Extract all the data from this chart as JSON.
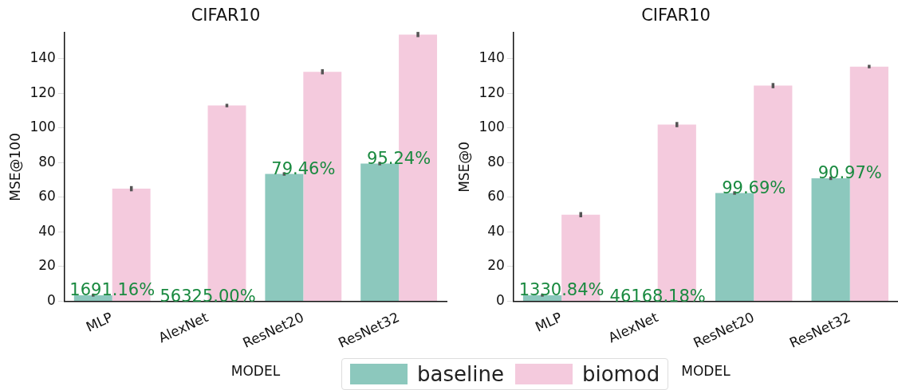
{
  "chart_data": [
    {
      "type": "bar",
      "title": "CIFAR10",
      "xlabel": "MODEL",
      "ylabel": "MSE@100",
      "categories": [
        "MLP",
        "AlexNet",
        "ResNet20",
        "ResNet32"
      ],
      "series": [
        {
          "name": "baseline",
          "color": "#8cc8bd",
          "values": [
            3.5,
            0.2,
            73.5,
            79.5
          ],
          "errors": [
            0.8,
            null,
            1,
            1
          ]
        },
        {
          "name": "biomod",
          "color": "#f4cadd",
          "values": [
            65,
            113,
            132.5,
            154
          ],
          "errors": [
            1.5,
            1,
            1.5,
            1.5
          ]
        }
      ],
      "ylim": [
        0,
        155
      ],
      "yticks": [
        0,
        20,
        40,
        60,
        80,
        100,
        120,
        140
      ],
      "grid": false,
      "legend": "bottom",
      "annotations": [
        {
          "text": "1691.16%",
          "x": "MLP",
          "y": 3.5
        },
        {
          "text": "56325.00%",
          "x": "AlexNet",
          "y": 0
        },
        {
          "text": "79.46%",
          "x": "ResNet20",
          "y": 73.5
        },
        {
          "text": "95.24%",
          "x": "ResNet32",
          "y": 79.5
        }
      ]
    },
    {
      "type": "bar",
      "title": "CIFAR10",
      "xlabel": "MODEL",
      "ylabel": "MSE@0",
      "categories": [
        "MLP",
        "AlexNet",
        "ResNet20",
        "ResNet32"
      ],
      "series": [
        {
          "color": "#8cc8bd",
          "values": [
            3.5,
            0.2,
            62.5,
            71
          ],
          "errors": [
            0.8,
            null,
            1,
            1
          ]
        },
        {
          "color": "#f4cadd",
          "values": [
            50,
            102,
            124.5,
            135.5
          ],
          "errors": [
            1.5,
            1.5,
            1.5,
            1
          ]
        }
      ],
      "ylim": [
        0,
        155
      ],
      "yticks": [
        0,
        20,
        40,
        60,
        80,
        100,
        120,
        140
      ],
      "grid": false,
      "annotations": [
        {
          "text": "1330.84%",
          "x": "MLP",
          "y": 3.5
        },
        {
          "text": "46168.18%",
          "x": "AlexNet",
          "y": 0
        },
        {
          "text": "99.69%",
          "x": "ResNet20",
          "y": 62.5
        },
        {
          "text": "90.97%",
          "x": "ResNet32",
          "y": 71
        }
      ]
    }
  ]
}
